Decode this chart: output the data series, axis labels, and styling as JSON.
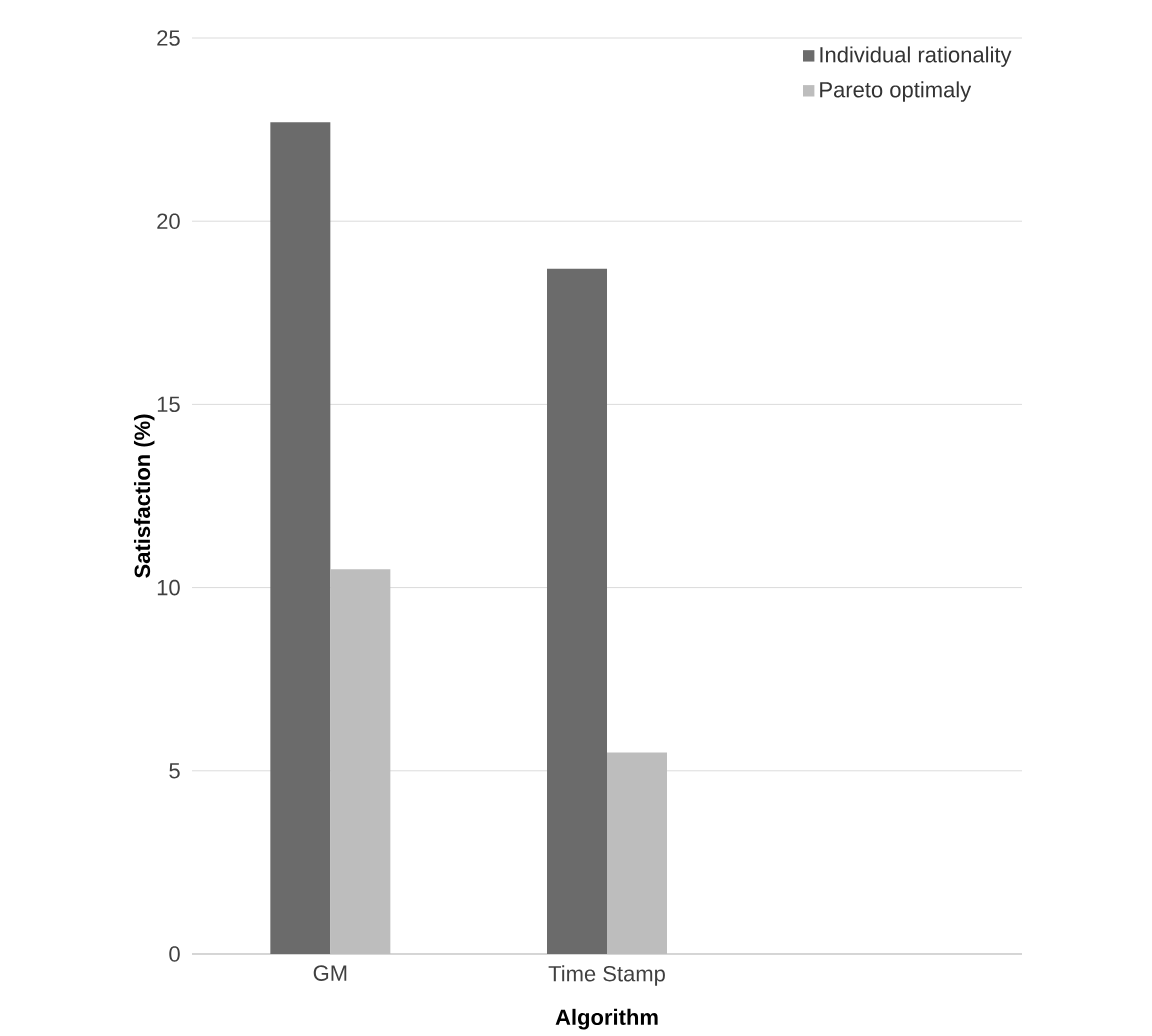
{
  "chart_data": {
    "type": "bar",
    "xlabel": "Algorithm",
    "ylabel": "Satisfaction (%)",
    "categories": [
      "GM",
      "Time Stamp",
      null
    ],
    "series": [
      {
        "name": "Individual rationality",
        "color": "#6b6b6b",
        "values": [
          22.7,
          18.7,
          null
        ]
      },
      {
        "name": "Pareto optimaly",
        "color": "#bdbdbd",
        "values": [
          10.5,
          5.5,
          null
        ]
      }
    ],
    "ylim": [
      0,
      25
    ],
    "yticks": [
      0,
      5,
      10,
      15,
      20,
      25
    ],
    "grid": "y",
    "legend": "top right"
  }
}
